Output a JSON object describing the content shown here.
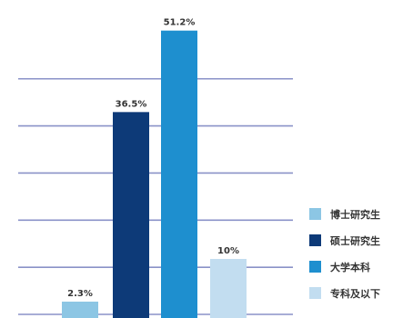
{
  "chart_data": {
    "type": "bar",
    "title": "",
    "xlabel": "",
    "ylabel": "",
    "categories": [
      "博士研究生",
      "硕士研究生",
      "大学本科",
      "专科及以下"
    ],
    "values": [
      2.3,
      36.5,
      51.2,
      10
    ],
    "value_labels": [
      "2.3%",
      "36.5%",
      "51.2%",
      "10%"
    ],
    "colors": [
      "#8cc6e4",
      "#0d3a78",
      "#1e8fcf",
      "#c2ddf0"
    ],
    "ylim": [
      0,
      55
    ],
    "grid": true,
    "legend": {
      "position": "right",
      "entries": [
        "博士研究生",
        "硕士研究生",
        "大学本科",
        "专科及以下"
      ]
    }
  }
}
